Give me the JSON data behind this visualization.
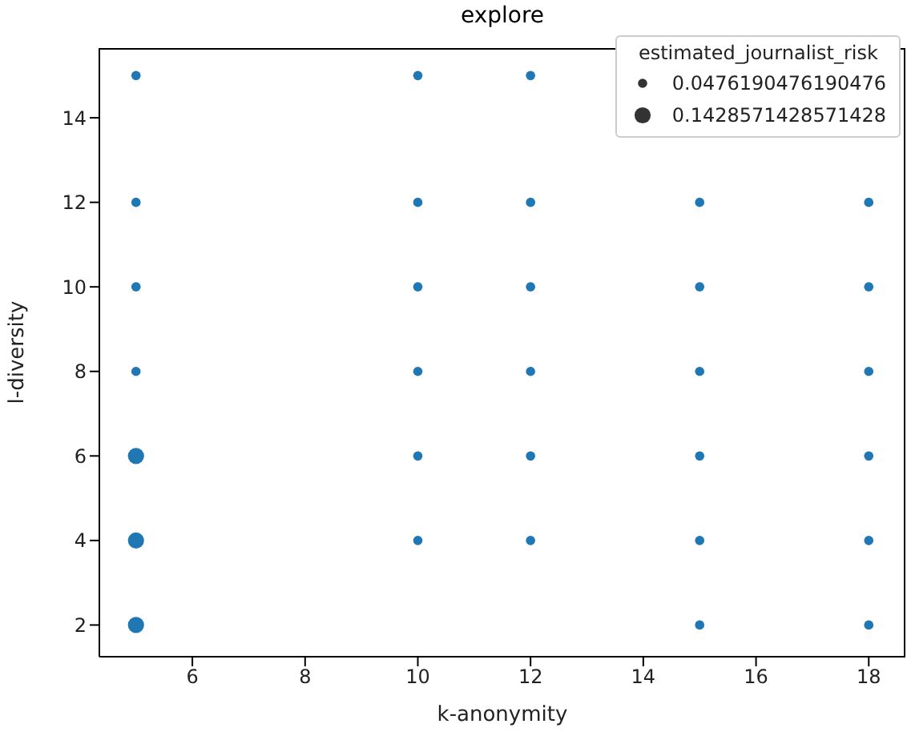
{
  "chart_data": {
    "type": "bubble",
    "title": "explore",
    "xlabel": "k-anonymity",
    "ylabel": "l-diversity",
    "legend_title": "estimated_journalist_risk",
    "grid": false,
    "xlim": [
      4.35,
      18.65
    ],
    "ylim": [
      1.25,
      15.65
    ],
    "xticks": [
      6,
      8,
      10,
      12,
      14,
      16,
      18
    ],
    "yticks": [
      2,
      4,
      6,
      8,
      10,
      12,
      14
    ],
    "size_legend": [
      0.0476190476190476,
      0.1428571428571428
    ],
    "x": [
      5,
      5,
      5,
      5,
      5,
      5,
      5,
      10,
      10,
      10,
      10,
      10,
      10,
      12,
      12,
      12,
      12,
      12,
      12,
      15,
      15,
      15,
      15,
      15,
      15,
      18,
      18,
      18,
      18,
      18,
      18
    ],
    "values": [
      15,
      12,
      10,
      8,
      6,
      4,
      2,
      15,
      12,
      10,
      8,
      6,
      4,
      15,
      12,
      10,
      8,
      6,
      4,
      12,
      10,
      8,
      6,
      4,
      2,
      12,
      10,
      8,
      6,
      4,
      2
    ],
    "sizes": [
      0.0476190476190476,
      0.0476190476190476,
      0.0476190476190476,
      0.0476190476190476,
      0.1428571428571428,
      0.1428571428571428,
      0.1428571428571428,
      0.0476190476190476,
      0.0476190476190476,
      0.0476190476190476,
      0.0476190476190476,
      0.0476190476190476,
      0.0476190476190476,
      0.0476190476190476,
      0.0476190476190476,
      0.0476190476190476,
      0.0476190476190476,
      0.0476190476190476,
      0.0476190476190476,
      0.0476190476190476,
      0.0476190476190476,
      0.0476190476190476,
      0.0476190476190476,
      0.0476190476190476,
      0.0476190476190476,
      0.0476190476190476,
      0.0476190476190476,
      0.0476190476190476,
      0.0476190476190476,
      0.0476190476190476,
      0.0476190476190476
    ],
    "color": "#1f77b4"
  }
}
